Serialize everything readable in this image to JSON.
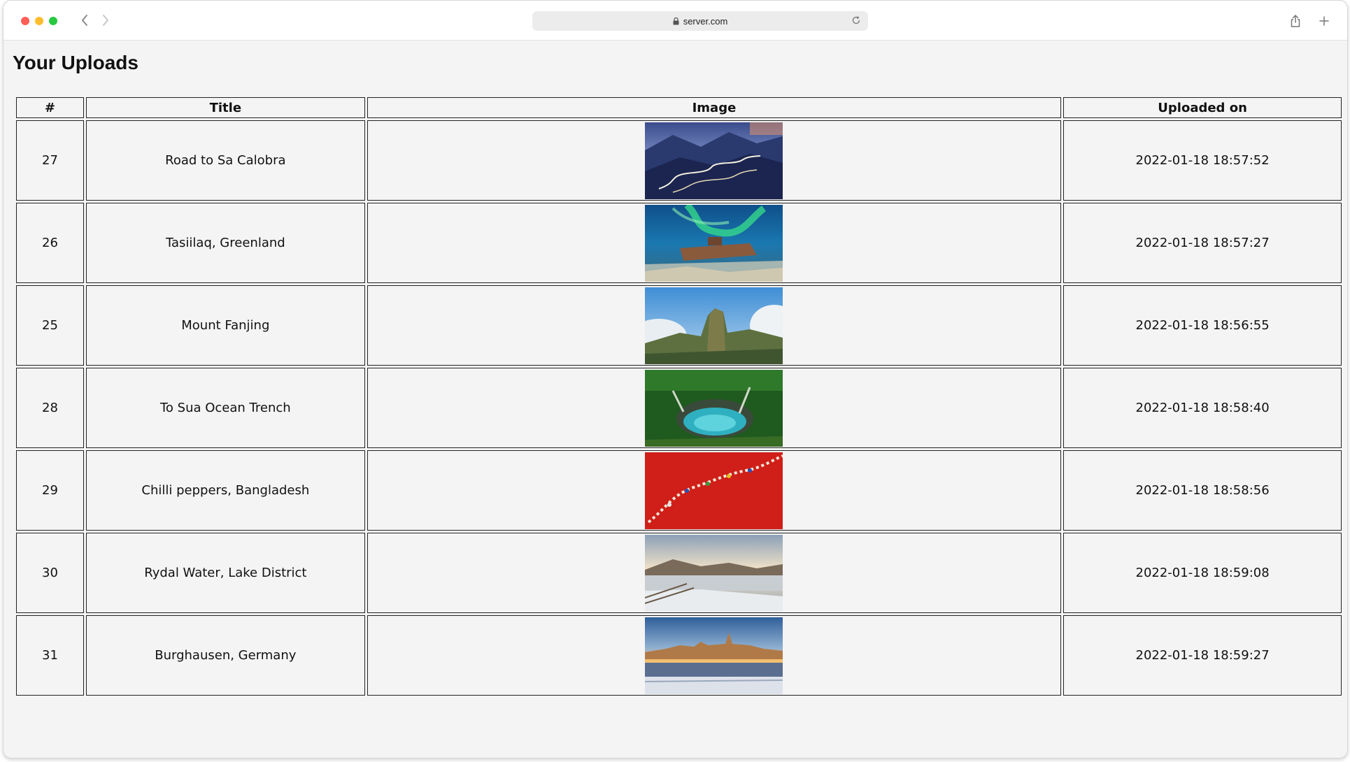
{
  "browser": {
    "url": "server.com"
  },
  "page": {
    "title": "Your Uploads"
  },
  "table": {
    "headers": [
      "#",
      "Title",
      "Image",
      "Uploaded on"
    ],
    "rows": [
      {
        "id": "27",
        "title": "Road to Sa Calobra",
        "uploaded": "2022-01-18 18:57:52",
        "image": "mountain-road-photo"
      },
      {
        "id": "26",
        "title": "Tasiilaq, Greenland",
        "uploaded": "2022-01-18 18:57:27",
        "image": "aurora-shipwreck-photo"
      },
      {
        "id": "25",
        "title": "Mount Fanjing",
        "uploaded": "2022-01-18 18:56:55",
        "image": "mountain-peak-clouds-photo"
      },
      {
        "id": "28",
        "title": "To Sua Ocean Trench",
        "uploaded": "2022-01-18 18:58:40",
        "image": "ocean-trench-photo"
      },
      {
        "id": "29",
        "title": "Chilli peppers, Bangladesh",
        "uploaded": "2022-01-18 18:58:56",
        "image": "chilli-field-photo"
      },
      {
        "id": "30",
        "title": "Rydal Water, Lake District",
        "uploaded": "2022-01-18 18:59:08",
        "image": "snowy-lake-photo"
      },
      {
        "id": "31",
        "title": "Burghausen, Germany",
        "uploaded": "2022-01-18 18:59:27",
        "image": "town-sunset-photo"
      }
    ]
  }
}
